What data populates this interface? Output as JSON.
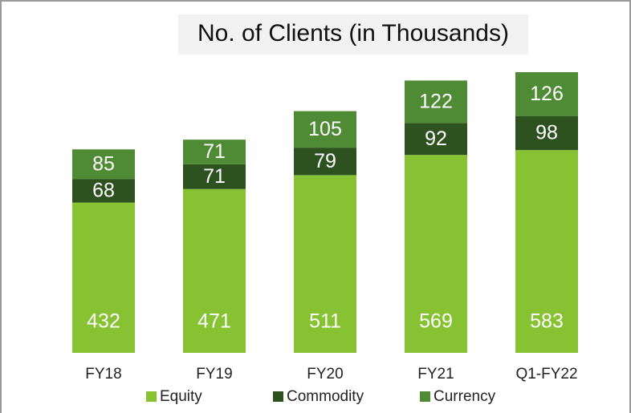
{
  "chart_data": {
    "type": "stacked_bar",
    "title": "No. of Clients (in Thousands)",
    "categories": [
      "FY18",
      "FY19",
      "FY20",
      "FY21",
      "Q1-FY22"
    ],
    "series": [
      {
        "name": "Equity",
        "color": "#86c232",
        "values": [
          432,
          471,
          511,
          569,
          583
        ]
      },
      {
        "name": "Commodity",
        "color": "#2e5120",
        "values": [
          68,
          71,
          79,
          92,
          98
        ]
      },
      {
        "name": "Currency",
        "color": "#4f8a35",
        "values": [
          85,
          71,
          105,
          122,
          126
        ]
      }
    ]
  }
}
